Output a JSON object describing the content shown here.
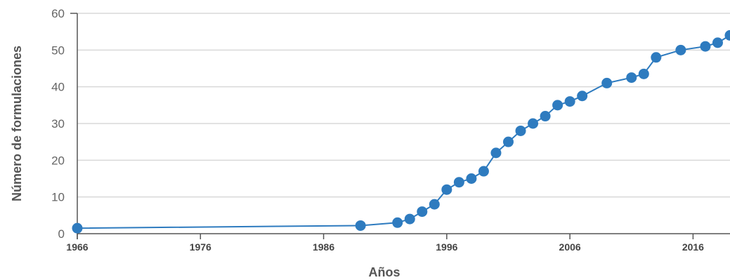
{
  "colors": {
    "series": "#2e7bbf",
    "grid": "#d9d9d9",
    "axis": "#555555"
  },
  "chart_data": {
    "type": "line",
    "title": "",
    "xlabel": "Años",
    "ylabel": "Número de formulaciones",
    "xlim": [
      1966,
      2019
    ],
    "ylim": [
      0,
      60
    ],
    "x_ticks": [
      1966,
      1976,
      1986,
      1996,
      2006,
      2016
    ],
    "y_ticks": [
      0,
      10,
      20,
      30,
      40,
      50,
      60
    ],
    "grid": true,
    "legend": "none",
    "series": [
      {
        "x": [
          1966,
          1989,
          1992,
          1993,
          1994,
          1995,
          1996,
          1997,
          1998,
          1999,
          2000,
          2001,
          2002,
          2003,
          2004,
          2005,
          2006,
          2007,
          2009,
          2011,
          2012,
          2013,
          2015,
          2017,
          2018,
          2019
        ],
        "y": [
          1.5,
          2.2,
          3,
          4,
          6,
          8,
          12,
          14,
          15,
          17,
          22,
          25,
          28,
          30,
          32,
          35,
          36,
          37.5,
          41,
          42.5,
          43.5,
          48,
          50,
          51,
          52,
          54
        ]
      }
    ]
  }
}
